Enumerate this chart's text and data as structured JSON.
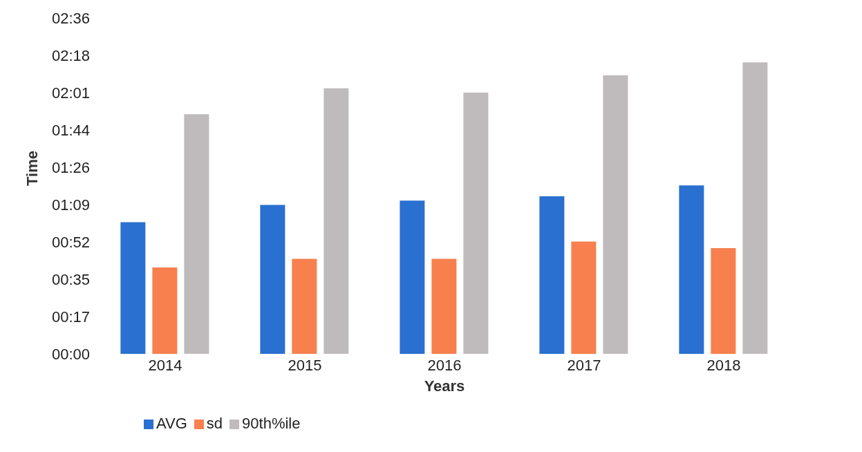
{
  "chart_data": {
    "type": "bar",
    "xlabel": "Years",
    "ylabel": "Time",
    "categories": [
      "2014",
      "2015",
      "2016",
      "2017",
      "2018"
    ],
    "series": [
      {
        "name": "AVG",
        "color": "#2a70d0",
        "values": [
          61,
          69,
          71,
          73,
          78
        ]
      },
      {
        "name": "sd",
        "color": "#f7804e",
        "values": [
          40,
          44,
          44,
          52,
          49
        ]
      },
      {
        "name": "90th%ile",
        "color": "#bfbbbd",
        "values": [
          111,
          123,
          121,
          129,
          135
        ]
      }
    ],
    "ylim": [
      0,
      155.52
    ],
    "yticks": [
      {
        "value": 0,
        "label": "00:00"
      },
      {
        "value": 17.28,
        "label": "00:17"
      },
      {
        "value": 34.56,
        "label": "00:35"
      },
      {
        "value": 51.84,
        "label": "00:52"
      },
      {
        "value": 69.12,
        "label": "01:09"
      },
      {
        "value": 86.4,
        "label": "01:26"
      },
      {
        "value": 103.68,
        "label": "01:44"
      },
      {
        "value": 120.96,
        "label": "02:01"
      },
      {
        "value": 138.24,
        "label": "02:18"
      },
      {
        "value": 155.52,
        "label": "02:36"
      }
    ],
    "grid": false,
    "legend": "bottom left"
  }
}
